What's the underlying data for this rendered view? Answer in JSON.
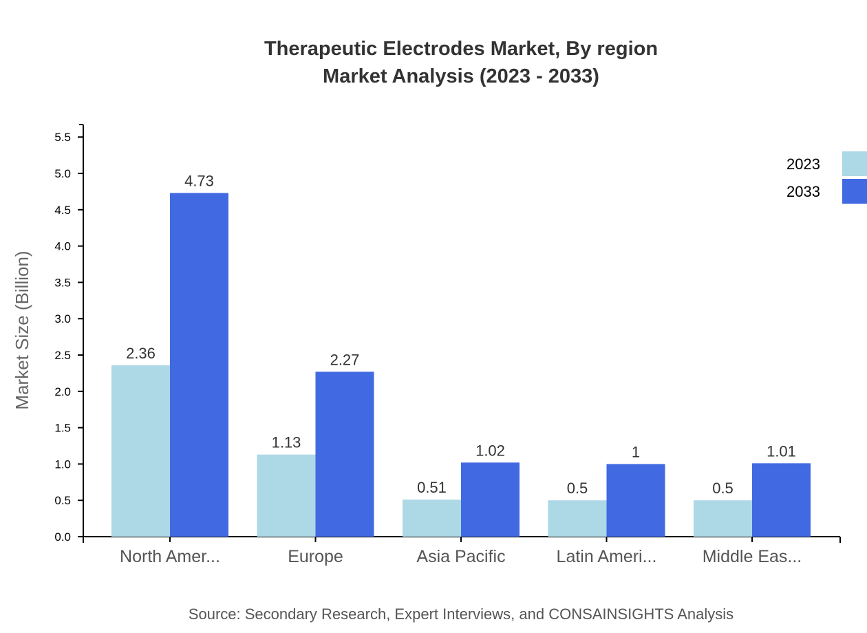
{
  "chart_data": {
    "type": "bar",
    "title": "Therapeutic Electrodes Market, By region",
    "subtitle": "Market Analysis (2023 - 2033)",
    "xlabel": "",
    "ylabel": "Market Size (Billion)",
    "ylim": [
      0,
      5.67
    ],
    "yticks": [
      "0.0",
      "0.5",
      "1.0",
      "1.5",
      "2.0",
      "2.5",
      "3.0",
      "3.5",
      "4.0",
      "4.5",
      "5.0",
      "5.5"
    ],
    "categories": [
      "North Amer...",
      "Europe",
      "Asia Pacific",
      "Latin Ameri...",
      "Middle Eas..."
    ],
    "series": [
      {
        "name": "2023",
        "color": "#add8e6",
        "values": [
          2.36,
          1.13,
          0.51,
          0.5,
          0.5
        ]
      },
      {
        "name": "2033",
        "color": "#4169e1",
        "values": [
          4.73,
          2.27,
          1.02,
          1,
          1.01
        ]
      }
    ],
    "grid": false,
    "legend": "top-right",
    "source": "Source: Secondary Research, Expert Interviews, and CONSAINSIGHTS Analysis"
  }
}
